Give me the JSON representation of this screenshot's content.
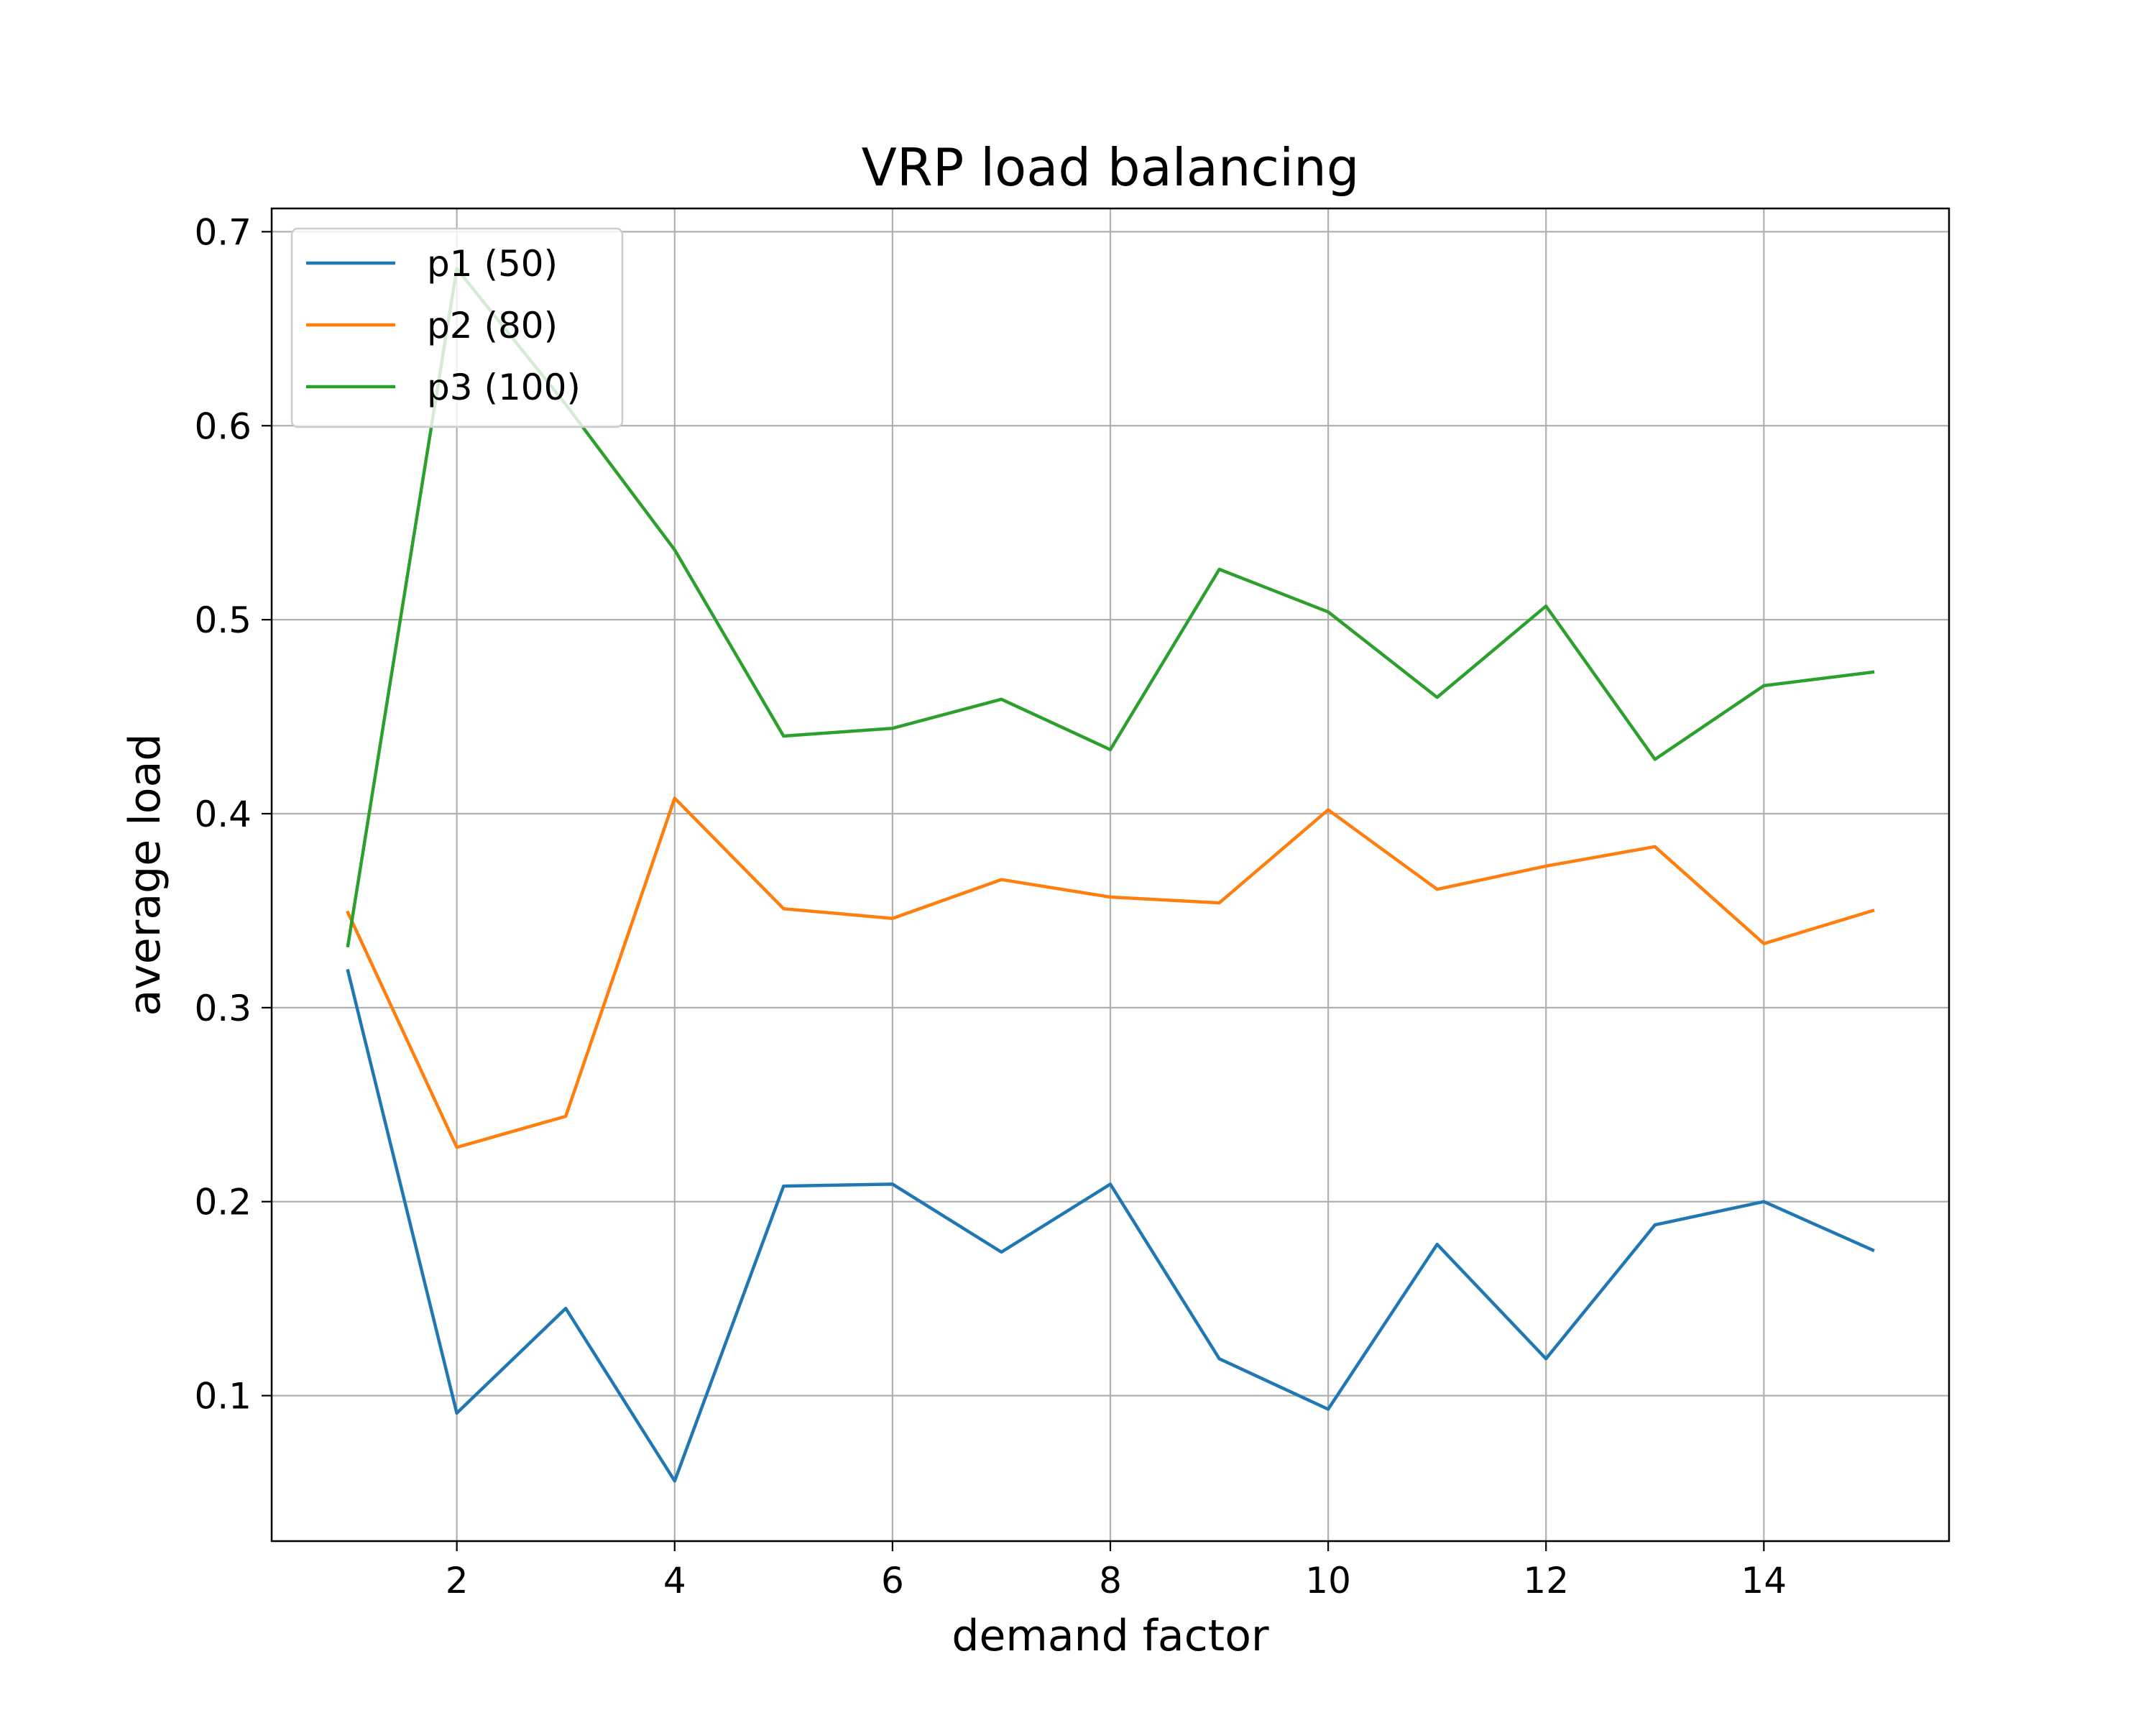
{
  "chart_data": {
    "type": "line",
    "title": "VRP load balancing",
    "xlabel": "demand factor",
    "ylabel": "average load",
    "xlim": [
      0.3,
      15.7
    ],
    "ylim": [
      0.025,
      0.712
    ],
    "x_ticks": [
      2,
      4,
      6,
      8,
      10,
      12,
      14
    ],
    "x_tick_labels": [
      "2",
      "4",
      "6",
      "8",
      "10",
      "12",
      "14"
    ],
    "y_ticks": [
      0.1,
      0.2,
      0.3,
      0.4,
      0.5,
      0.6,
      0.7
    ],
    "y_tick_labels": [
      "0.1",
      "0.2",
      "0.3",
      "0.4",
      "0.5",
      "0.6",
      "0.7"
    ],
    "grid": true,
    "legend_position": "top-left",
    "x": [
      1,
      2,
      3,
      4,
      5,
      6,
      7,
      8,
      9,
      10,
      11,
      12,
      13,
      14,
      15
    ],
    "series": [
      {
        "name": "p1 (50)",
        "color": "#1f77b4",
        "values": [
          0.319,
          0.091,
          0.145,
          0.056,
          0.208,
          0.209,
          0.174,
          0.209,
          0.119,
          0.093,
          0.178,
          0.119,
          0.188,
          0.2,
          0.175
        ]
      },
      {
        "name": "p2 (80)",
        "color": "#ff7f0e",
        "values": [
          0.349,
          0.228,
          0.244,
          0.408,
          0.351,
          0.346,
          0.366,
          0.357,
          0.354,
          0.402,
          0.361,
          0.373,
          0.383,
          0.333,
          0.35
        ]
      },
      {
        "name": "p3 (100)",
        "color": "#2ca02c",
        "values": [
          0.332,
          0.681,
          0.611,
          0.536,
          0.44,
          0.444,
          0.459,
          0.433,
          0.526,
          0.504,
          0.46,
          0.507,
          0.428,
          0.466,
          0.473
        ]
      }
    ]
  }
}
